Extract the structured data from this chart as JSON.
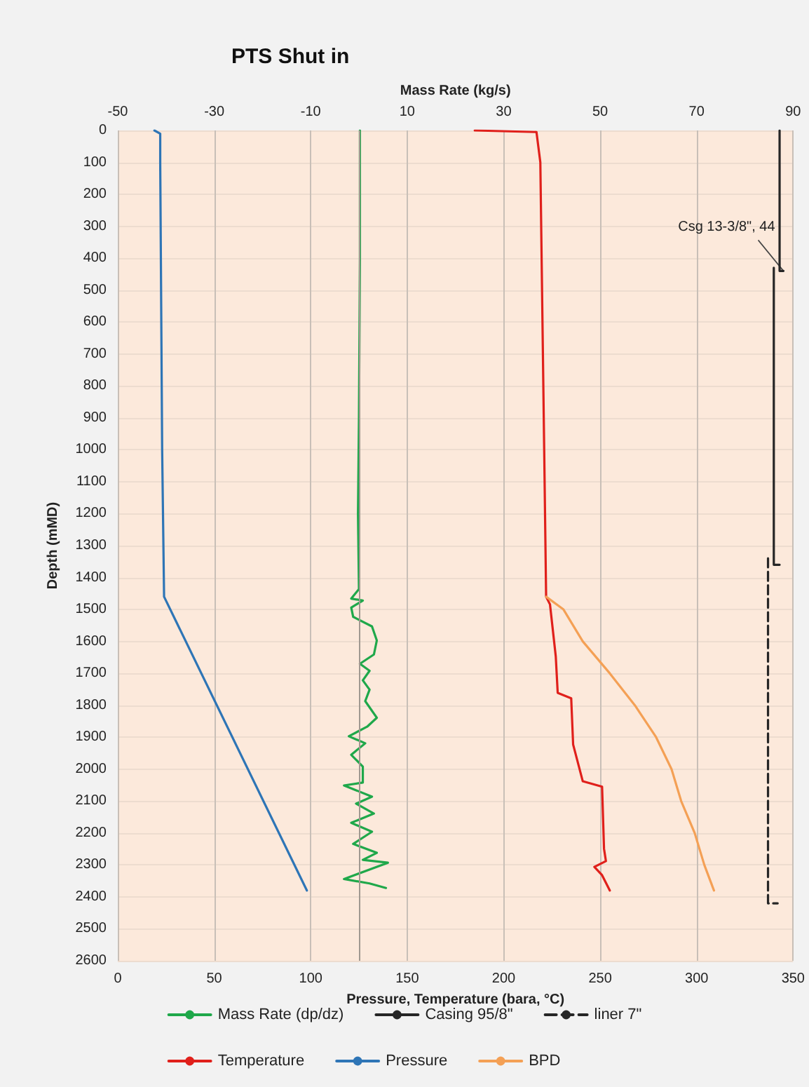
{
  "chart_data": {
    "type": "line",
    "title": "PTS Shut in",
    "xlabel": "Pressure, Temperature (bara, °C)",
    "x2label": "Mass Rate (kg/s)",
    "ylabel": "Depth (mMD)",
    "xlim": [
      0,
      350
    ],
    "xticks": [
      0,
      50,
      100,
      150,
      200,
      250,
      300,
      350
    ],
    "x2lim": [
      -50,
      90
    ],
    "x2ticks": [
      -50,
      -30,
      -10,
      10,
      30,
      50,
      70,
      90
    ],
    "ylim": [
      2600,
      0
    ],
    "yticks": [
      0,
      100,
      200,
      300,
      400,
      500,
      600,
      700,
      800,
      900,
      1000,
      1100,
      1200,
      1300,
      1400,
      1500,
      1600,
      1700,
      1800,
      1900,
      2000,
      2100,
      2200,
      2300,
      2400,
      2500,
      2600
    ],
    "grid": true,
    "legend": "bottom",
    "marker": "none",
    "ref_lines": [
      {
        "axis": "x2",
        "value": 0,
        "color": "#a09890"
      }
    ],
    "annotations": [
      {
        "text": "Csg 13-3/8\", 44",
        "x": 345,
        "y": 440
      }
    ],
    "series": [
      {
        "name": "Mass Rate (dp/dz)",
        "color": "#1fa84a",
        "axis": "x2",
        "x": [
          0.2,
          0.2,
          0.0,
          -0.2,
          0.0,
          -1.6,
          0.8,
          -1.6,
          -1.2,
          2.7,
          3.7,
          3.1,
          0.2,
          2.2,
          0.8,
          2.2,
          1.3,
          3.7,
          1.7,
          -2.1,
          1.3,
          -1.6,
          0.8,
          0.8,
          -3.1,
          2.7,
          -0.6,
          3.1,
          -1.6,
          2.7,
          -1.2,
          3.7,
          0.8,
          6.0,
          -3.1,
          2.2,
          5.6
        ],
        "values": [
          0,
          400,
          900,
          1200,
          1436,
          1466,
          1472,
          1494,
          1523,
          1553,
          1597,
          1641,
          1670,
          1692,
          1722,
          1751,
          1787,
          1839,
          1867,
          1897,
          1919,
          1955,
          1992,
          2042,
          2051,
          2086,
          2108,
          2139,
          2168,
          2196,
          2234,
          2262,
          2284,
          2293,
          2344,
          2358,
          2372
        ]
      },
      {
        "name": "Casing 95/8\"",
        "color": "#262626",
        "x": [
          343,
          343,
          345,
          null,
          340,
          340,
          343
        ],
        "values": [
          0,
          440,
          440,
          null,
          430,
          1360,
          1360
        ]
      },
      {
        "name": "liner 7\"",
        "color": "#262626",
        "line_style": "dashed",
        "x": [
          337,
          337,
          342
        ],
        "values": [
          1340,
          2420,
          2420
        ]
      },
      {
        "name": "Temperature",
        "color": "#e0201b",
        "x": [
          185,
          217,
          219,
          221,
          222,
          224,
          227,
          228,
          235,
          236,
          241,
          251,
          252,
          253,
          247,
          251,
          255
        ],
        "values": [
          0,
          5,
          100,
          1000,
          1460,
          1484,
          1647,
          1761,
          1778,
          1923,
          2038,
          2055,
          2249,
          2288,
          2306,
          2332,
          2380
        ]
      },
      {
        "name": "Pressure",
        "color": "#2e75b6",
        "x": [
          19,
          22,
          22,
          23,
          24,
          98
        ],
        "values": [
          0,
          10,
          100,
          1000,
          1460,
          2380
        ]
      },
      {
        "name": "BPD",
        "color": "#f4a055",
        "x": [
          222,
          231,
          241,
          255,
          268,
          279,
          287,
          292,
          299,
          304,
          309
        ],
        "values": [
          1460,
          1500,
          1600,
          1700,
          1800,
          1900,
          2000,
          2100,
          2200,
          2300,
          2380
        ]
      }
    ]
  }
}
